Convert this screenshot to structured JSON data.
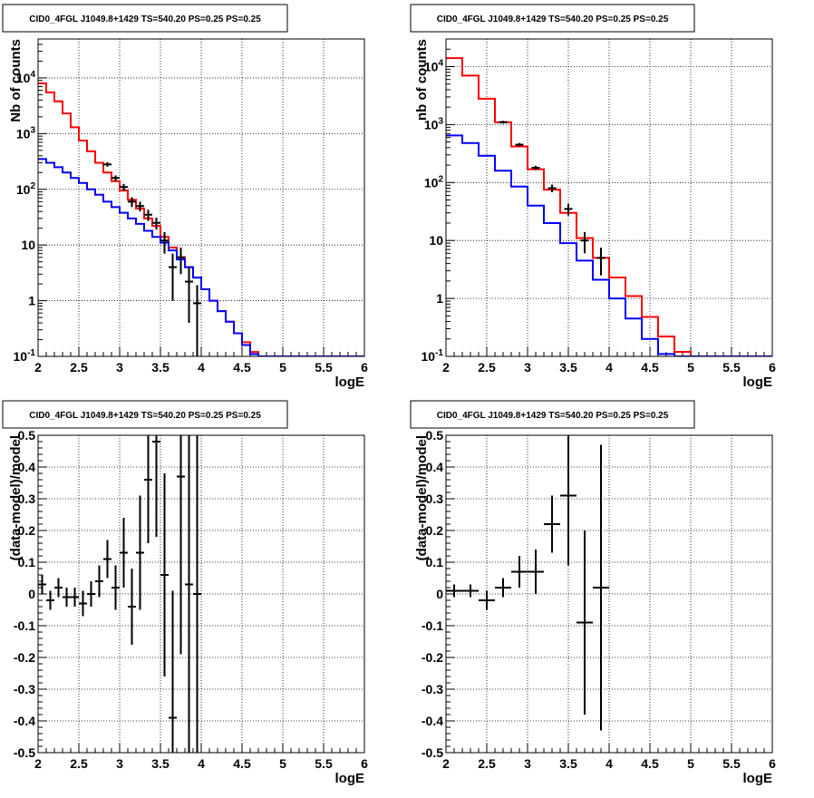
{
  "chart_data": [
    {
      "type": "step",
      "title": "CID0_4FGL J1049.8+1429 TS=540.20 PS=0.25 PS=0.25",
      "xlabel": "logE",
      "ylabel": "Nb of counts",
      "yscale": "log",
      "xlim": [
        2,
        6
      ],
      "ylim": [
        0.1,
        50000
      ],
      "grid": true,
      "xticks": [
        "2",
        "2.5",
        "3",
        "3.5",
        "4",
        "4.5",
        "5",
        "5.5",
        "6"
      ],
      "yticks": [
        "10^-1",
        "1",
        "10",
        "10^2",
        "10^3",
        "10^4"
      ],
      "bin_edges": [
        2.0,
        2.1,
        2.2,
        2.3,
        2.4,
        2.5,
        2.6,
        2.7,
        2.8,
        2.9,
        3.0,
        3.1,
        3.2,
        3.3,
        3.4,
        3.5,
        3.6,
        3.7,
        3.8,
        3.9,
        4.0,
        4.1,
        4.2,
        4.3,
        4.4,
        4.5,
        4.6,
        4.7,
        4.8,
        4.9,
        5.0,
        5.1,
        5.2,
        5.3,
        5.4,
        5.5,
        5.6,
        5.7,
        5.8,
        5.9,
        6.0
      ],
      "series": [
        {
          "color": "#ff0000",
          "values": [
            8000,
            5500,
            3800,
            2300,
            1300,
            750,
            480,
            300,
            200,
            140,
            95,
            65,
            45,
            30,
            22,
            14,
            9,
            6,
            4,
            2.6,
            1.6,
            1.0,
            0.65,
            0.42,
            0.26,
            0.18,
            0.12,
            0.1,
            0.1,
            0.1,
            0.1,
            0.1,
            0.1,
            0.1,
            0.1,
            0.1,
            0.1,
            0.1,
            0.1,
            0.1
          ]
        },
        {
          "color": "#0000ff",
          "values": [
            350,
            300,
            250,
            200,
            160,
            130,
            100,
            80,
            60,
            48,
            38,
            30,
            24,
            18,
            14,
            11,
            8,
            5.5,
            4,
            2.6,
            1.6,
            1.0,
            0.65,
            0.42,
            0.26,
            0.16,
            0.11,
            0.1,
            0.1,
            0.1,
            0.1,
            0.1,
            0.1,
            0.1,
            0.1,
            0.1,
            0.1,
            0.1,
            0.1,
            0.1
          ]
        }
      ],
      "points": {
        "color": "#000000",
        "x": [
          2.85,
          2.95,
          3.05,
          3.15,
          3.25,
          3.35,
          3.45,
          3.55,
          3.65,
          3.75,
          3.85,
          3.95
        ],
        "y": [
          280,
          160,
          110,
          60,
          50,
          35,
          25,
          12,
          4,
          6,
          2.2,
          0.9
        ],
        "yerr": [
          25,
          18,
          15,
          12,
          10,
          8,
          6,
          5,
          3,
          3,
          1.8,
          1.0
        ]
      }
    },
    {
      "type": "step",
      "title": "CID0_4FGL J1049.8+1429 TS=540.20 PS=0.25 PS=0.25",
      "xlabel": "logE",
      "ylabel": "nb of counts",
      "yscale": "log",
      "xlim": [
        2,
        6
      ],
      "ylim": [
        0.1,
        30000
      ],
      "grid": true,
      "xticks": [
        "2",
        "2.5",
        "3",
        "3.5",
        "4",
        "4.5",
        "5",
        "5.5",
        "6"
      ],
      "yticks": [
        "10^-1",
        "1",
        "10",
        "10^2",
        "10^3",
        "10^4"
      ],
      "bin_edges": [
        2.0,
        2.2,
        2.4,
        2.6,
        2.8,
        3.0,
        3.2,
        3.4,
        3.6,
        3.8,
        4.0,
        4.2,
        4.4,
        4.6,
        4.8,
        5.0,
        5.2,
        5.4,
        5.6,
        5.8,
        6.0
      ],
      "series": [
        {
          "color": "#ff0000",
          "values": [
            14000,
            7000,
            2800,
            1100,
            420,
            170,
            75,
            30,
            11,
            5,
            2.3,
            1.1,
            0.48,
            0.22,
            0.12,
            0.1,
            0.1,
            0.1,
            0.1,
            0.1
          ]
        },
        {
          "color": "#0000ff",
          "values": [
            650,
            480,
            290,
            160,
            85,
            40,
            20,
            9,
            4.5,
            2.1,
            1.0,
            0.45,
            0.2,
            0.11,
            0.1,
            0.1,
            0.1,
            0.1,
            0.1,
            0.1
          ]
        }
      ],
      "points": {
        "color": "#000000",
        "x": [
          2.7,
          2.9,
          3.1,
          3.3,
          3.5,
          3.7,
          3.9
        ],
        "y": [
          1100,
          450,
          180,
          80,
          35,
          10,
          5
        ],
        "yerr": [
          60,
          30,
          15,
          12,
          8,
          4,
          2.5
        ]
      }
    },
    {
      "type": "scatter",
      "title": "CID0_4FGL J1049.8+1429 TS=540.20 PS=0.25 PS=0.25",
      "xlabel": "logE",
      "ylabel": "(data-model)/model",
      "xlim": [
        2,
        6
      ],
      "ylim": [
        -0.5,
        0.5
      ],
      "grid": true,
      "xticks": [
        "2",
        "2.5",
        "3",
        "3.5",
        "4",
        "4.5",
        "5",
        "5.5",
        "6"
      ],
      "yticks": [
        "-0.5",
        "-0.4",
        "-0.3",
        "-0.2",
        "-0.1",
        "0",
        "0.1",
        "0.2",
        "0.3",
        "0.4",
        "0.5"
      ],
      "points": {
        "color": "#000000",
        "xerr": 0.05,
        "x": [
          2.05,
          2.15,
          2.25,
          2.35,
          2.45,
          2.55,
          2.65,
          2.75,
          2.85,
          2.95,
          3.05,
          3.15,
          3.25,
          3.35,
          3.45,
          3.55,
          3.65,
          3.75,
          3.85,
          3.95
        ],
        "y": [
          0.03,
          -0.02,
          0.02,
          -0.01,
          -0.01,
          -0.03,
          0.0,
          0.04,
          0.11,
          0.02,
          0.13,
          -0.04,
          0.13,
          0.36,
          0.48,
          0.06,
          -0.39,
          0.37,
          0.03,
          0.0
        ],
        "yerr": [
          0.03,
          0.03,
          0.03,
          0.03,
          0.03,
          0.04,
          0.04,
          0.05,
          0.06,
          0.07,
          0.11,
          0.12,
          0.18,
          0.2,
          0.3,
          0.32,
          0.4,
          0.56,
          0.65,
          0.9
        ]
      }
    },
    {
      "type": "scatter",
      "title": "CID0_4FGL J1049.8+1429 TS=540.20 PS=0.25 PS=0.25",
      "xlabel": "logE",
      "ylabel": "(data-model)/model",
      "xlim": [
        2,
        6
      ],
      "ylim": [
        -0.5,
        0.5
      ],
      "grid": true,
      "xticks": [
        "2",
        "2.5",
        "3",
        "3.5",
        "4",
        "4.5",
        "5",
        "5.5",
        "6"
      ],
      "yticks": [
        "-0.5",
        "-0.4",
        "-0.3",
        "-0.2",
        "-0.1",
        "0",
        "0.1",
        "0.2",
        "0.3",
        "0.4",
        "0.5"
      ],
      "points": {
        "color": "#000000",
        "xerr": 0.1,
        "x": [
          2.1,
          2.3,
          2.5,
          2.7,
          2.9,
          3.1,
          3.3,
          3.5,
          3.7,
          3.9
        ],
        "y": [
          0.01,
          0.01,
          -0.02,
          0.02,
          0.07,
          0.07,
          0.22,
          0.31,
          -0.09,
          0.02
        ],
        "yerr": [
          0.02,
          0.02,
          0.03,
          0.03,
          0.05,
          0.07,
          0.09,
          0.22,
          0.29,
          0.45
        ]
      }
    }
  ]
}
